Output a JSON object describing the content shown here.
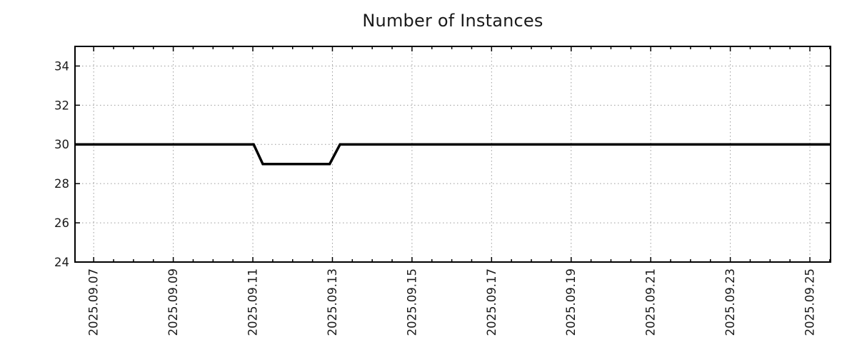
{
  "chart_data": {
    "type": "line",
    "title": "Number of Instances",
    "description": "Step line holding at 30 instances, dipping to 29 between 2025-09-11 and 2025-09-13, then returning to 30.",
    "x_unit": "day of September 2025 (fractional = time of day)",
    "xlim": [
      6.53,
      25.52
    ],
    "ylim": [
      24,
      35
    ],
    "y_ticks": [
      24,
      26,
      28,
      30,
      32,
      34
    ],
    "x_major_ticks": [
      {
        "value": 7,
        "label": "2025.09.07"
      },
      {
        "value": 9,
        "label": "2025.09.09"
      },
      {
        "value": 11,
        "label": "2025.09.11"
      },
      {
        "value": 13,
        "label": "2025.09.13"
      },
      {
        "value": 15,
        "label": "2025.09.15"
      },
      {
        "value": 17,
        "label": "2025.09.17"
      },
      {
        "value": 19,
        "label": "2025.09.19"
      },
      {
        "value": 21,
        "label": "2025.09.21"
      },
      {
        "value": 23,
        "label": "2025.09.23"
      },
      {
        "value": 25,
        "label": "2025.09.25"
      }
    ],
    "x_minor_tick_step": 0.5,
    "grid": true,
    "legend": "none",
    "series": [
      {
        "name": "instances",
        "color": "#000000",
        "line_width": 3.5,
        "points": [
          [
            6.53,
            30
          ],
          [
            11.02,
            30
          ],
          [
            11.25,
            29
          ],
          [
            12.93,
            29
          ],
          [
            13.19,
            30
          ],
          [
            25.52,
            30
          ]
        ]
      }
    ],
    "colors": {
      "line": "#000000",
      "grid": "#9a9a9a",
      "axis": "#000000",
      "text": "#1a1a1a",
      "background": "#ffffff"
    }
  }
}
